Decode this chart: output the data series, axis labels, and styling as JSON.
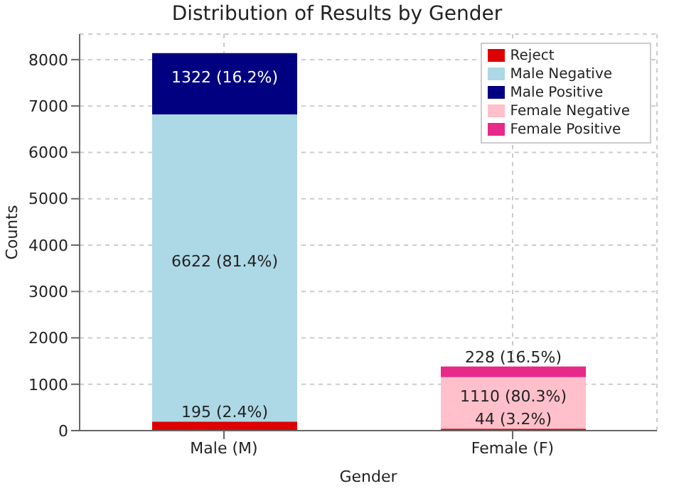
{
  "chart_data": {
    "type": "bar",
    "title": "Distribution of Results by Gender",
    "xlabel": "Gender",
    "ylabel": "Counts",
    "categories": [
      "Male (M)",
      "Female (F)"
    ],
    "stacked": true,
    "series": [
      {
        "name": "Reject",
        "color": "#dd0000",
        "values": [
          195,
          44
        ],
        "value_labels": [
          "195 (2.4%)",
          "44 (3.2%)"
        ]
      },
      {
        "name": "Male Negative",
        "color": "#add8e6",
        "values": [
          6622,
          null
        ],
        "value_labels": [
          "6622 (81.4%)",
          null
        ]
      },
      {
        "name": "Male Positive",
        "color": "#000080",
        "values": [
          1322,
          null
        ],
        "value_labels": [
          "1322 (16.2%)",
          null
        ]
      },
      {
        "name": "Female Negative",
        "color": "#ffc0cb",
        "values": [
          null,
          1110
        ],
        "value_labels": [
          null,
          "1110 (80.3%)"
        ]
      },
      {
        "name": "Female Positive",
        "color": "#e7298a",
        "values": [
          null,
          228
        ],
        "value_labels": [
          null,
          "228 (16.5%)"
        ]
      }
    ],
    "ylim": [
      0,
      8550
    ],
    "yticks": [
      0,
      1000,
      2000,
      3000,
      4000,
      5000,
      6000,
      7000,
      8000
    ],
    "grid": true,
    "legend": "top right"
  }
}
